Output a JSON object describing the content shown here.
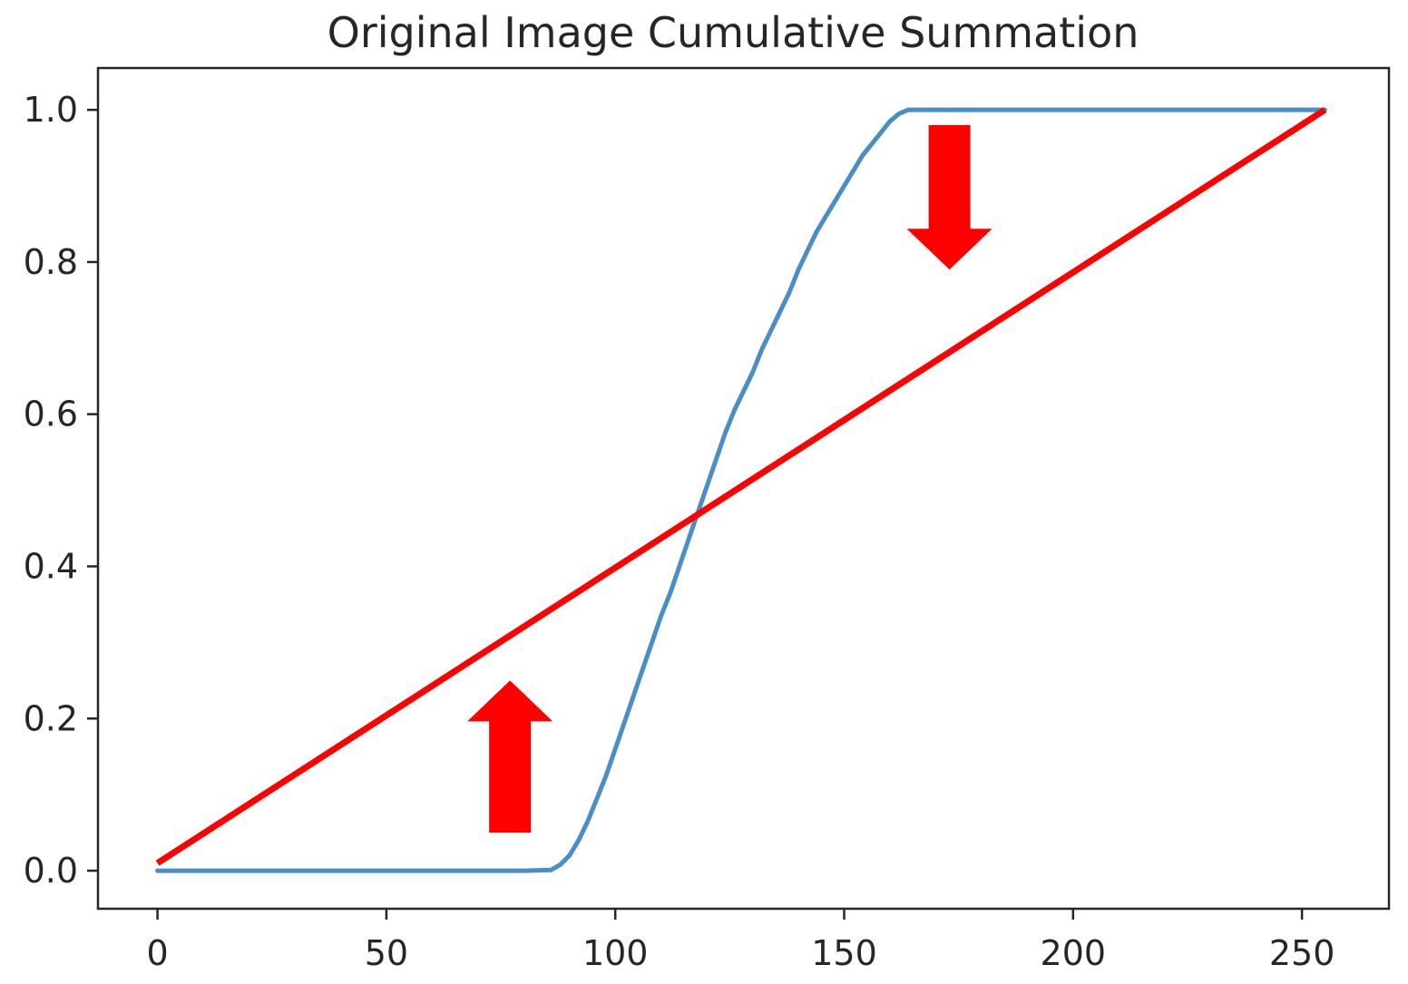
{
  "chart_data": {
    "type": "line",
    "title": "Original Image Cumulative Summation",
    "xlabel": "",
    "ylabel": "",
    "xlim": [
      -13,
      269
    ],
    "ylim": [
      -0.05,
      1.055
    ],
    "grid": false,
    "x_ticks": [
      0,
      50,
      100,
      150,
      200,
      250
    ],
    "x_tick_labels": [
      "0",
      "50",
      "100",
      "150",
      "200",
      "250"
    ],
    "y_ticks": [
      0.0,
      0.2,
      0.4,
      0.6,
      0.8,
      1.0
    ],
    "y_tick_labels": [
      "0.0",
      "0.2",
      "0.4",
      "0.6",
      "0.8",
      "1.0"
    ],
    "series": [
      {
        "color": "#4a8ec6",
        "x": [
          0,
          20,
          40,
          60,
          80,
          86,
          88,
          90,
          92,
          94,
          96,
          98,
          100,
          102,
          104,
          106,
          108,
          110,
          112,
          114,
          116,
          118,
          120,
          122,
          124,
          126,
          128,
          130,
          132,
          134,
          136,
          138,
          140,
          142,
          144,
          146,
          148,
          150,
          152,
          154,
          156,
          158,
          160,
          162,
          164,
          170,
          200,
          230,
          255
        ],
        "y": [
          0.0,
          0.0,
          0.0,
          0.0,
          0.0,
          0.001,
          0.008,
          0.02,
          0.04,
          0.065,
          0.095,
          0.125,
          0.16,
          0.195,
          0.23,
          0.265,
          0.3,
          0.335,
          0.365,
          0.4,
          0.435,
          0.47,
          0.505,
          0.54,
          0.575,
          0.605,
          0.63,
          0.655,
          0.685,
          0.71,
          0.735,
          0.76,
          0.79,
          0.815,
          0.84,
          0.86,
          0.88,
          0.9,
          0.92,
          0.94,
          0.955,
          0.97,
          0.985,
          0.995,
          1.0,
          1.0,
          1.0,
          1.0,
          1.0
        ]
      },
      {
        "color": "#ff0000",
        "x": [
          0,
          255
        ],
        "y": [
          0.01,
          1.0
        ]
      }
    ],
    "annotations": [
      {
        "type": "arrow",
        "direction": "up",
        "color": "#ff0000",
        "x": 77,
        "y_from": 0.05,
        "y_to": 0.25
      },
      {
        "type": "arrow",
        "direction": "down",
        "color": "#ff0000",
        "x": 173,
        "y_from": 0.98,
        "y_to": 0.79
      }
    ]
  }
}
